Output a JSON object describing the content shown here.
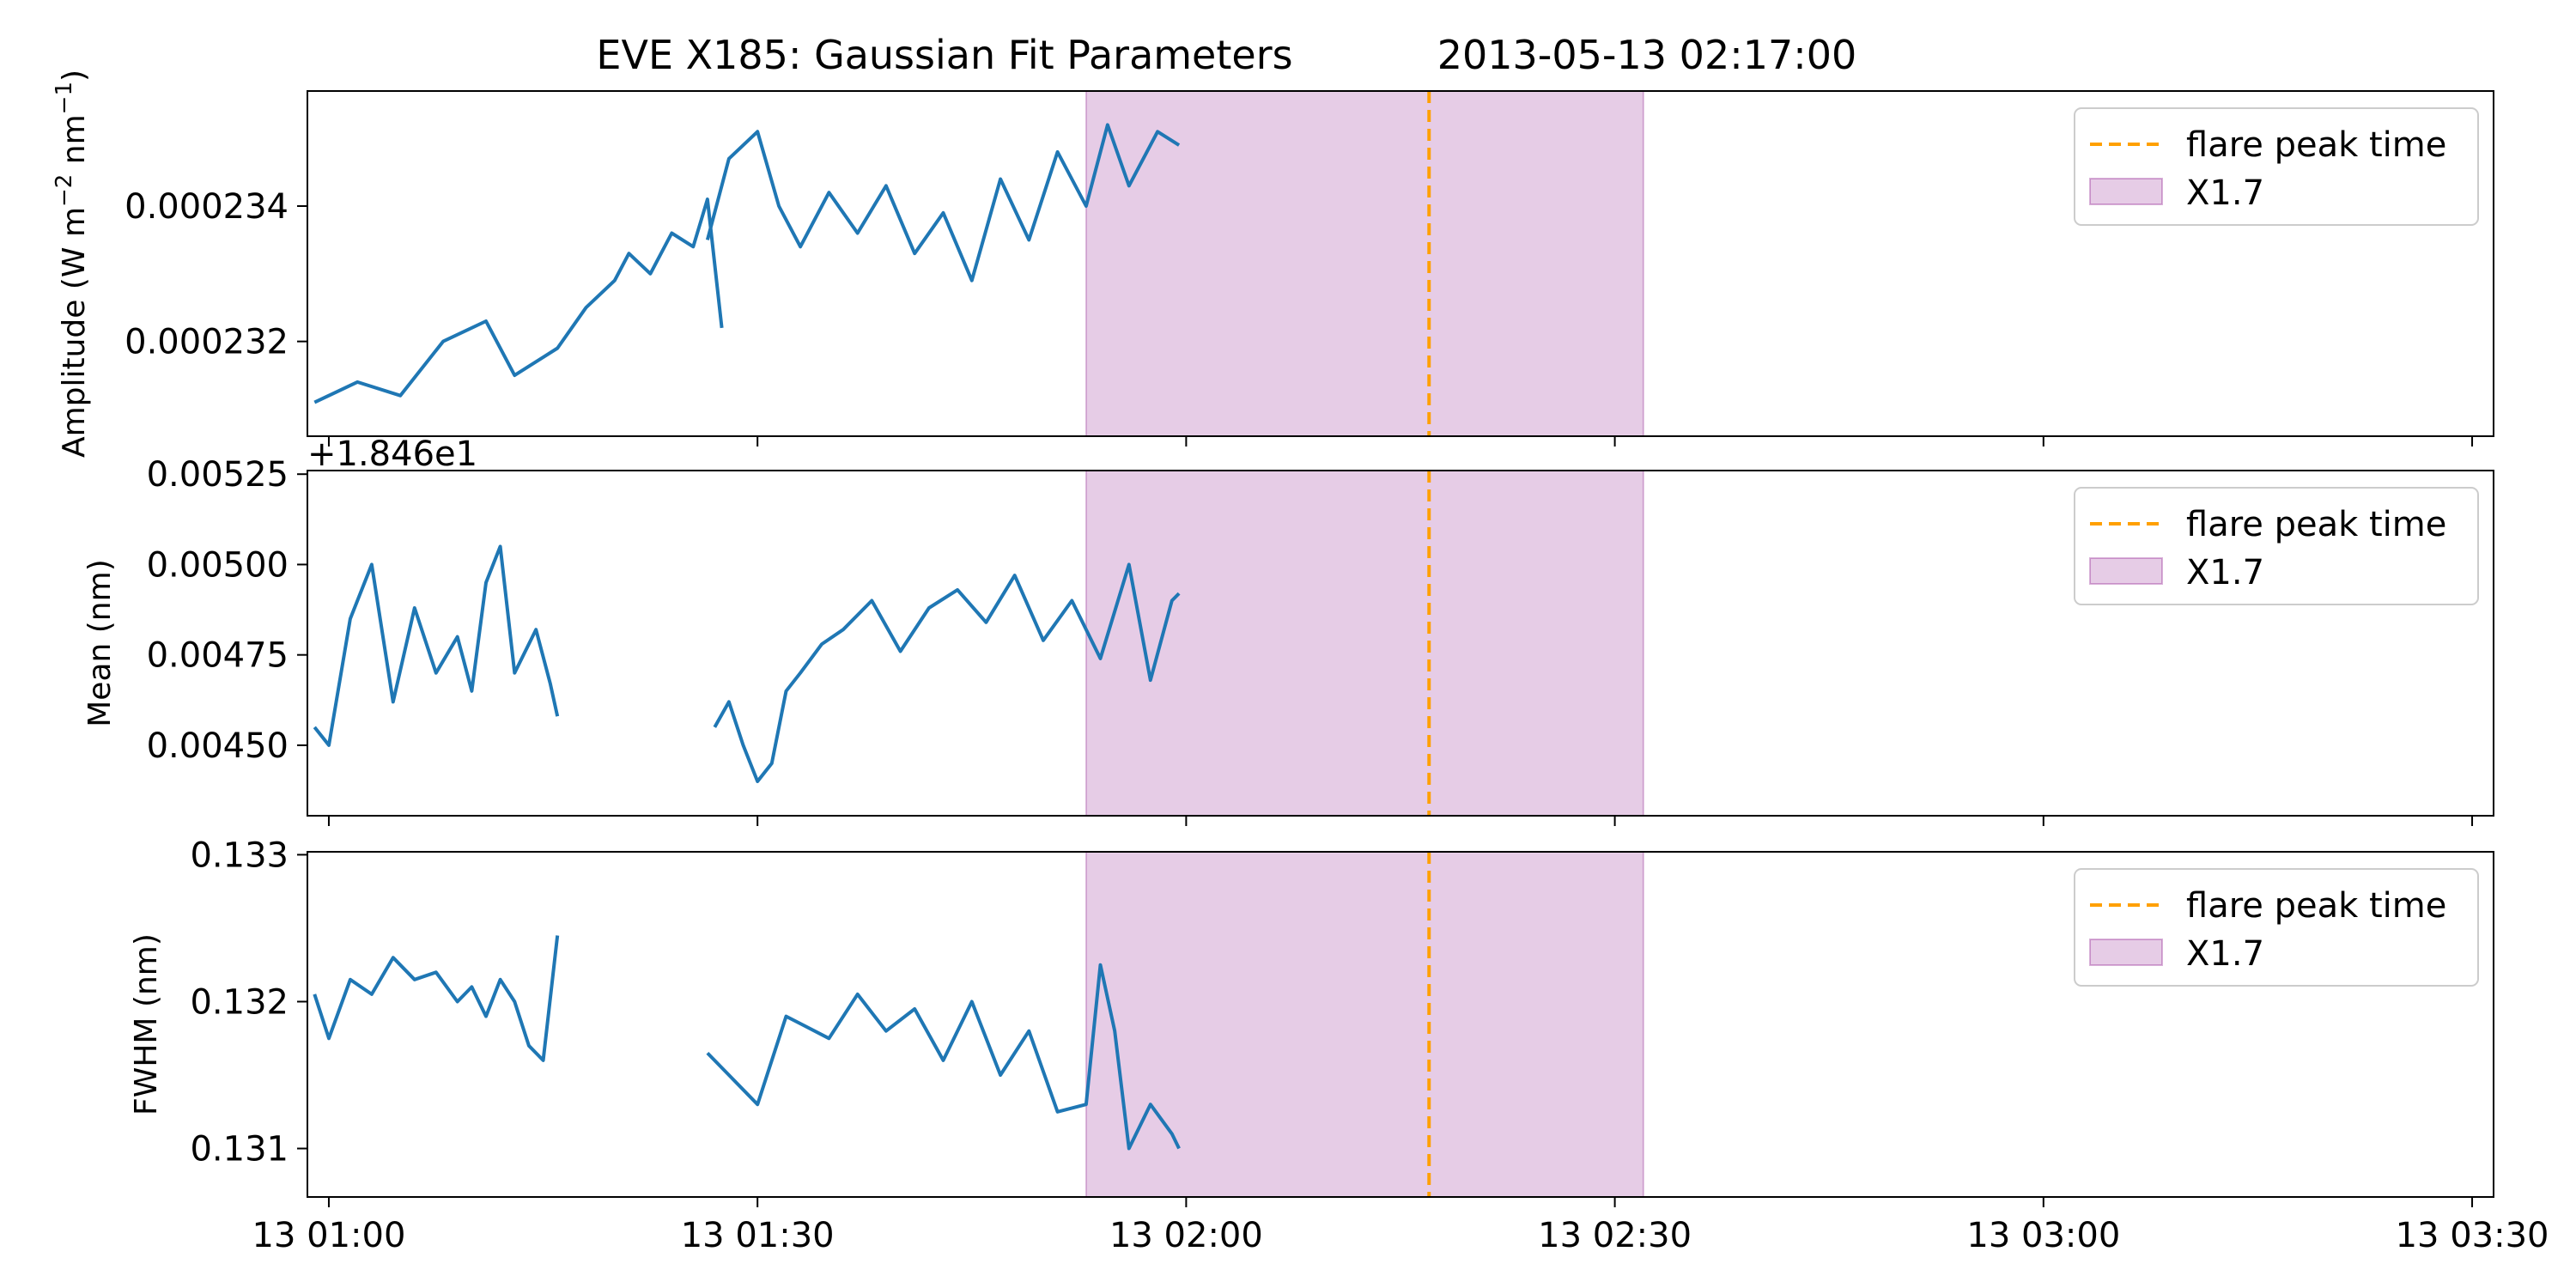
{
  "figure": {
    "title_left": "EVE X185: Gaussian Fit Parameters",
    "title_right": "2013-05-13 02:17:00"
  },
  "chart_data": {
    "type": "line",
    "x_unit": "time (2013-05-13 UTC, HH:MM)",
    "x_ticks": [
      "13 01:00",
      "13 01:30",
      "13 02:00",
      "13 02:30",
      "13 03:00",
      "13 03:30"
    ],
    "xlim": [
      "00:58:30",
      "03:31:30"
    ],
    "flare_peak_time": "02:17:00",
    "flare_interval": [
      "01:53:00",
      "02:32:00"
    ],
    "colors": {
      "series": "#1f77b4",
      "peak": "#ffa000",
      "span": "#800080"
    },
    "legend": {
      "placement": "upper right",
      "entries": [
        "flare peak time",
        "X1.7"
      ]
    },
    "panels": [
      {
        "ylabel": "Amplitude (W m$^{-2}$ nm$^{-1}$)",
        "ylim": [
          0.0002306,
          0.0002357
        ],
        "y_ticks": [
          "0.000232",
          "0.000234"
        ],
        "y_tick_values": [
          0.000232,
          0.000234
        ],
        "offset_label": "",
        "series": [
          {
            "x": [
              "00:59:00",
              "01:02:00",
              "01:05:00",
              "01:08:00",
              "01:11:00",
              "01:13:00",
              "01:16:00",
              "01:18:00",
              "01:20:00",
              "01:21:00",
              "01:22:30",
              "01:24:00",
              "01:25:30",
              "01:26:30",
              "01:27:30"
            ],
            "y": [
              0.0002311,
              0.0002314,
              0.0002312,
              0.000232,
              0.0002323,
              0.0002315,
              0.0002319,
              0.0002325,
              0.0002329,
              0.0002333,
              0.000233,
              0.0002336,
              0.0002334,
              0.0002341,
              0.0002322
            ]
          },
          {
            "x": [
              "01:26:30",
              "01:28:00",
              "01:30:00",
              "01:31:30",
              "01:33:00",
              "01:35:00",
              "01:37:00",
              "01:39:00",
              "01:41:00",
              "01:43:00",
              "01:45:00",
              "01:47:00",
              "01:49:00",
              "01:51:00",
              "01:53:00",
              "01:54:30",
              "01:56:00",
              "01:58:00",
              "01:59:30"
            ],
            "y": [
              0.0002335,
              0.0002347,
              0.0002351,
              0.000234,
              0.0002334,
              0.0002342,
              0.0002336,
              0.0002343,
              0.0002333,
              0.0002339,
              0.0002329,
              0.0002344,
              0.0002335,
              0.0002348,
              0.000234,
              0.0002352,
              0.0002343,
              0.0002351,
              0.0002349
            ]
          }
        ]
      },
      {
        "ylabel": "Mean (nm)",
        "ylim": [
          0.004305,
          0.00526
        ],
        "y_ticks": [
          "0.00450",
          "0.00475",
          "0.00500",
          "0.00525"
        ],
        "y_tick_values": [
          0.0045,
          0.00475,
          0.005,
          0.00525
        ],
        "offset_label": "+1.846e1",
        "series": [
          {
            "x": [
              "00:59:00",
              "01:00:00",
              "01:01:30",
              "01:03:00",
              "01:04:30",
              "01:06:00",
              "01:07:30",
              "01:09:00",
              "01:10:00",
              "01:11:00",
              "01:12:00",
              "01:13:00",
              "01:14:30",
              "01:15:30",
              "01:16:00"
            ],
            "y": [
              0.00455,
              0.0045,
              0.00485,
              0.005,
              0.00462,
              0.00488,
              0.0047,
              0.0048,
              0.00465,
              0.00495,
              0.00505,
              0.0047,
              0.00482,
              0.00467,
              0.00458
            ]
          },
          {
            "x": [
              "01:27:00",
              "01:28:00",
              "01:29:00",
              "01:30:00",
              "01:31:00",
              "01:32:00",
              "01:33:00",
              "01:34:30",
              "01:36:00",
              "01:38:00",
              "01:40:00",
              "01:42:00",
              "01:44:00",
              "01:46:00",
              "01:48:00",
              "01:50:00",
              "01:52:00",
              "01:54:00",
              "01:56:00",
              "01:57:30",
              "01:59:00",
              "01:59:30"
            ],
            "y": [
              0.00455,
              0.00462,
              0.0045,
              0.0044,
              0.00445,
              0.00465,
              0.0047,
              0.00478,
              0.00482,
              0.0049,
              0.00476,
              0.00488,
              0.00493,
              0.00484,
              0.00497,
              0.00479,
              0.0049,
              0.00474,
              0.005,
              0.00468,
              0.0049,
              0.00492
            ]
          }
        ]
      },
      {
        "ylabel": "FWHM (nm)",
        "ylim": [
          0.13067,
          0.13302
        ],
        "y_ticks": [
          "0.131",
          "0.132",
          "0.133"
        ],
        "y_tick_values": [
          0.131,
          0.132,
          0.133
        ],
        "offset_label": "",
        "series": [
          {
            "x": [
              "00:59:00",
              "01:00:00",
              "01:01:30",
              "01:03:00",
              "01:04:30",
              "01:06:00",
              "01:07:30",
              "01:09:00",
              "01:10:00",
              "01:11:00",
              "01:12:00",
              "01:13:00",
              "01:14:00",
              "01:15:00",
              "01:16:00"
            ],
            "y": [
              0.13205,
              0.13175,
              0.13215,
              0.13205,
              0.1323,
              0.13215,
              0.1322,
              0.132,
              0.1321,
              0.1319,
              0.13215,
              0.132,
              0.1317,
              0.1316,
              0.13245
            ]
          },
          {
            "x": [
              "01:26:30",
              "01:28:00",
              "01:30:00",
              "01:32:00",
              "01:33:00",
              "01:35:00",
              "01:37:00",
              "01:39:00",
              "01:41:00",
              "01:43:00",
              "01:45:00",
              "01:47:00",
              "01:49:00",
              "01:51:00",
              "01:53:00",
              "01:54:00",
              "01:55:00",
              "01:56:00",
              "01:57:30",
              "01:59:00",
              "01:59:30"
            ],
            "y": [
              0.13165,
              0.1315,
              0.1313,
              0.1319,
              0.13185,
              0.13175,
              0.13205,
              0.1318,
              0.13195,
              0.1316,
              0.132,
              0.1315,
              0.1318,
              0.13125,
              0.1313,
              0.13225,
              0.1318,
              0.131,
              0.1313,
              0.1311,
              0.131
            ]
          }
        ]
      }
    ]
  }
}
